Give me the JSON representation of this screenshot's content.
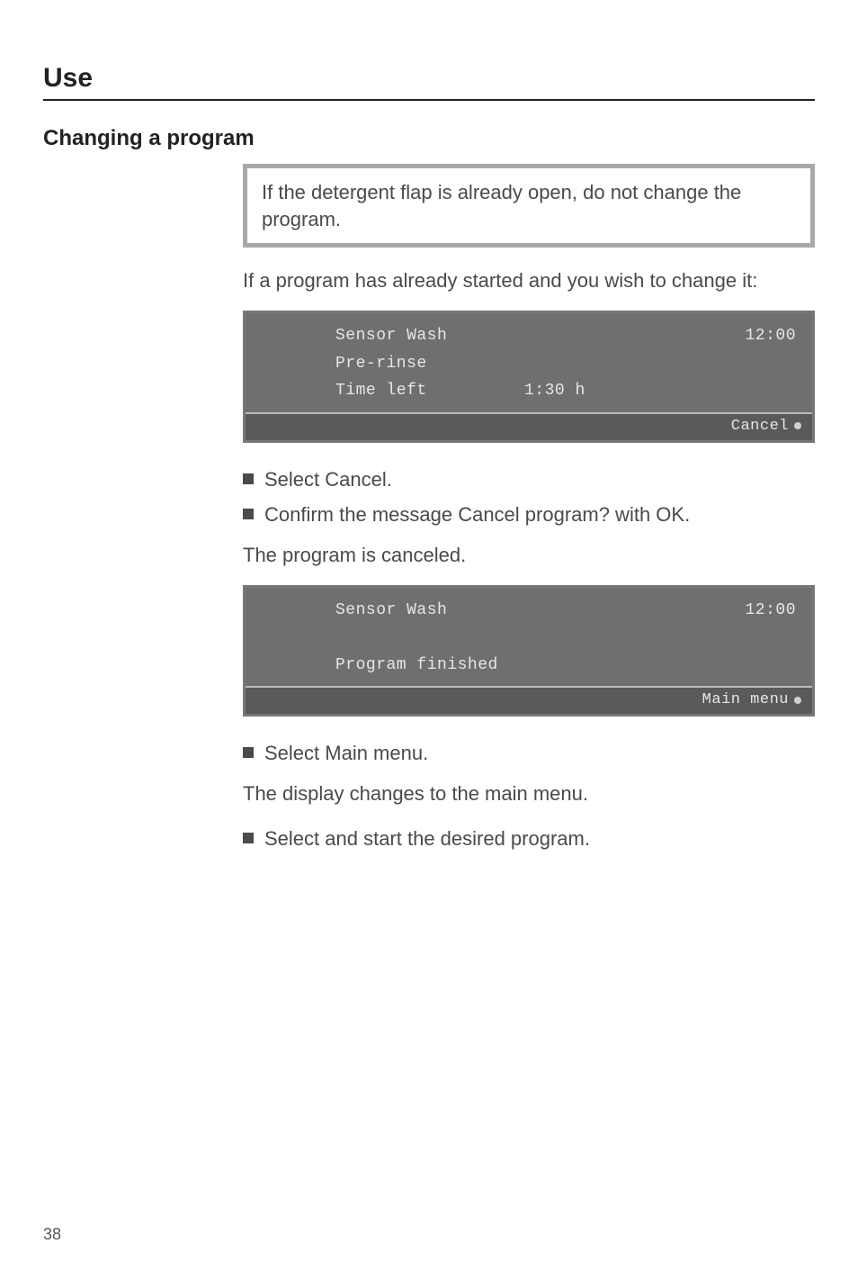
{
  "page": {
    "section_title": "Use",
    "subsection_title": "Changing a program",
    "page_number": "38"
  },
  "note": {
    "text": "If the detergent flap is already open, do not change the program."
  },
  "intro": {
    "text": "If a program has already started and you wish to change it:"
  },
  "lcd1": {
    "line1_left": "Sensor Wash",
    "line1_right": "12:00",
    "line2_left": "Pre-rinse",
    "line3_left": "Time left",
    "line3_mid": "1:30 h",
    "bottom_btn": "Cancel"
  },
  "steps1": {
    "a": "Select Cancel.",
    "b": "Confirm the message Cancel program? with OK."
  },
  "mid_text": {
    "text": "The program is canceled."
  },
  "lcd2": {
    "line1_left": "Sensor Wash",
    "line1_right": "12:00",
    "line3_left": "Program finished",
    "bottom_btn": "Main menu"
  },
  "steps2": {
    "a": "Select Main menu."
  },
  "post_text": {
    "text": "The display changes to the main menu."
  },
  "steps3": {
    "a": "Select and start the desired program."
  },
  "style": {
    "lcd_bg": "#6f6f6f",
    "lcd_bottom_bg": "#5a5a5a",
    "lcd_text": "#e6e6e6",
    "note_border": "#a9a9a9",
    "rule_color": "#222222",
    "text_color": "#4a4a4a"
  }
}
